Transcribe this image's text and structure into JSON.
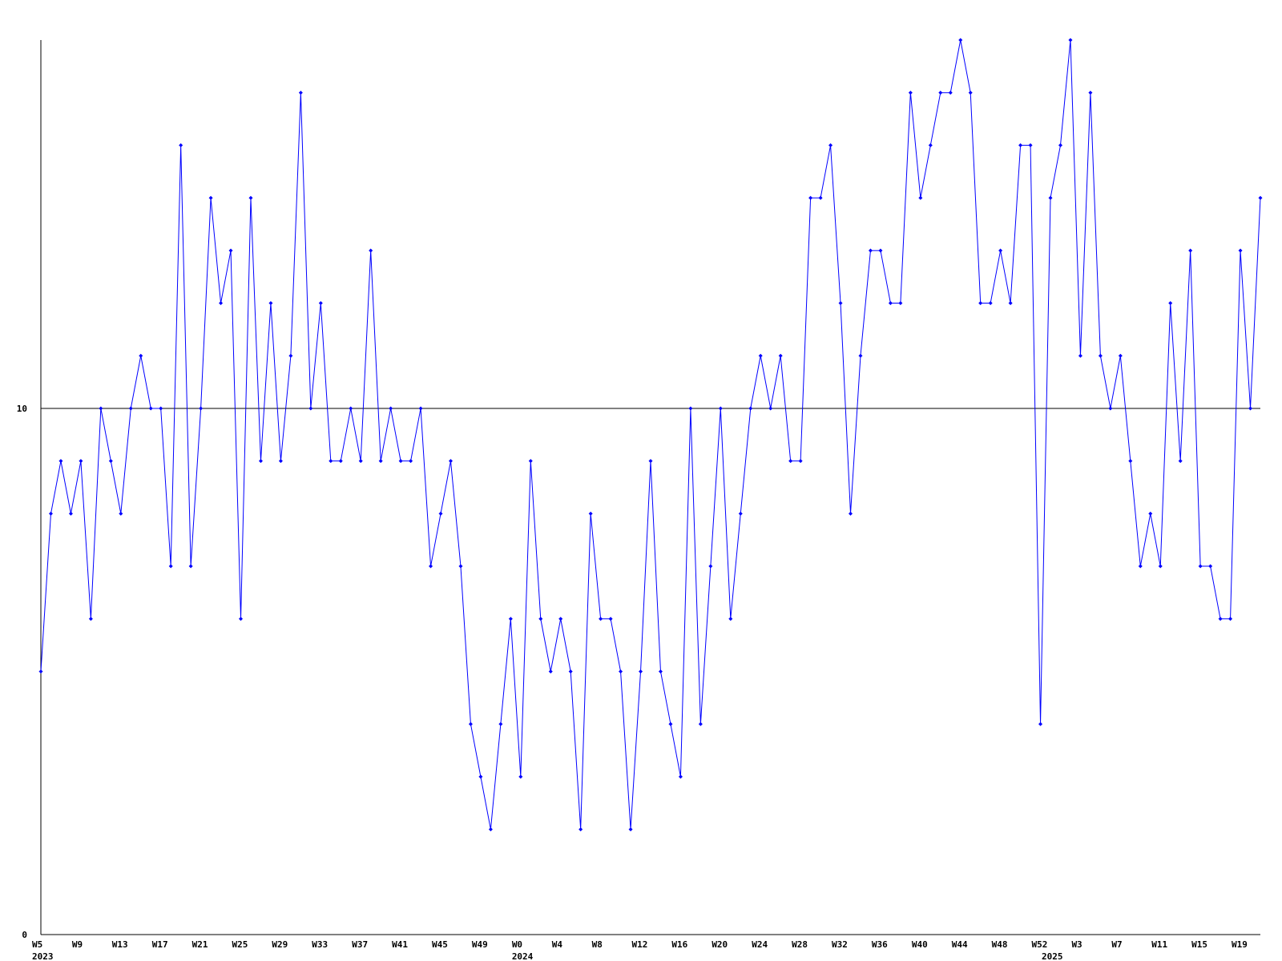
{
  "chart_data": {
    "type": "line",
    "categories": [
      "W5",
      null,
      null,
      null,
      "W9",
      null,
      null,
      null,
      "W13",
      null,
      null,
      null,
      "W17",
      null,
      null,
      null,
      "W21",
      null,
      null,
      null,
      "W25",
      null,
      null,
      null,
      "W29",
      null,
      null,
      null,
      "W33",
      null,
      null,
      null,
      "W37",
      null,
      null,
      null,
      "W41",
      null,
      null,
      null,
      "W45",
      null,
      null,
      null,
      "W49",
      null,
      null,
      null,
      "W0",
      null,
      null,
      null,
      "W4",
      null,
      null,
      null,
      "W8",
      null,
      null,
      null,
      "W12",
      null,
      null,
      null,
      "W16",
      null,
      null,
      null,
      "W20",
      null,
      null,
      null,
      "W24",
      null,
      null,
      null,
      "W28",
      null,
      null,
      null,
      "W32",
      null,
      null,
      null,
      "W36",
      null,
      null,
      null,
      "W40",
      null,
      null,
      null,
      "W44",
      null,
      null,
      null,
      "W48",
      null,
      null,
      null,
      "W52",
      null,
      null,
      null,
      "W3",
      null,
      null,
      null,
      "W7",
      null,
      null,
      null,
      "W11",
      null,
      null,
      null,
      "W15",
      null,
      null,
      null,
      "W19",
      null,
      null
    ],
    "years": [
      "2023",
      null,
      null,
      null,
      null,
      null,
      null,
      null,
      null,
      null,
      null,
      null,
      null,
      null,
      null,
      null,
      null,
      null,
      null,
      null,
      null,
      null,
      null,
      null,
      null,
      null,
      null,
      null,
      null,
      null,
      null,
      null,
      null,
      null,
      null,
      null,
      null,
      null,
      null,
      null,
      null,
      null,
      null,
      null,
      null,
      null,
      null,
      null,
      "2024",
      null,
      null,
      null,
      null,
      null,
      null,
      null,
      null,
      null,
      null,
      null,
      null,
      null,
      null,
      null,
      null,
      null,
      null,
      null,
      null,
      null,
      null,
      null,
      null,
      null,
      null,
      null,
      null,
      null,
      null,
      null,
      null,
      null,
      null,
      null,
      null,
      null,
      null,
      null,
      null,
      null,
      null,
      null,
      null,
      null,
      null,
      null,
      null,
      null,
      null,
      null,
      null,
      "2025",
      null,
      null,
      null,
      null,
      null,
      null,
      null,
      null,
      null,
      null,
      null,
      null,
      null,
      null,
      null,
      null,
      null,
      null,
      null,
      null
    ],
    "series": [
      {
        "color": "#0000ff",
        "values": [
          5,
          8,
          9,
          8,
          9,
          6,
          10,
          9,
          8,
          10,
          11,
          10,
          10,
          7,
          15,
          7,
          10,
          14,
          12,
          13,
          6,
          14,
          9,
          12,
          9,
          11,
          16,
          10,
          12,
          9,
          9,
          10,
          9,
          13,
          9,
          10,
          9,
          9,
          10,
          7,
          8,
          9,
          7,
          4,
          3,
          2,
          4,
          6,
          3,
          9,
          6,
          5,
          6,
          5,
          2,
          8,
          6,
          6,
          5,
          2,
          5,
          9,
          5,
          4,
          3,
          10,
          4,
          7,
          10,
          6,
          8,
          10,
          11,
          10,
          11,
          9,
          9,
          14,
          14,
          15,
          12,
          8,
          11,
          13,
          13,
          12,
          12,
          16,
          14,
          15,
          16,
          16,
          17,
          16,
          12,
          12,
          13,
          12,
          15,
          15,
          4,
          14,
          15,
          17,
          11,
          16,
          11,
          10,
          11,
          9,
          7,
          8,
          7,
          12,
          9,
          13,
          7,
          7,
          6,
          6,
          13,
          10,
          14
        ]
      }
    ],
    "ylim": [
      0,
      17
    ],
    "yticks": [
      0,
      10
    ],
    "grid": true
  }
}
